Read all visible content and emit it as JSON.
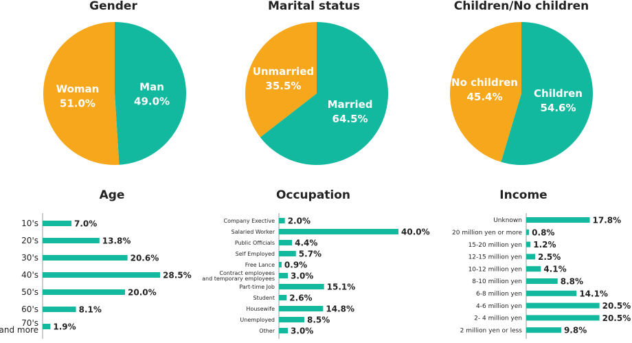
{
  "colors": {
    "teal": "#12b99e",
    "orange": "#f7a71b",
    "axis": "#9a9a9a",
    "text": "#222222",
    "pie_text": "#ffffff"
  },
  "chart_data": [
    {
      "type": "pie",
      "title": "Gender",
      "slices": [
        {
          "label": "Man",
          "value_label": "49.0%",
          "value": 49.0,
          "color": "#12b99e"
        },
        {
          "label": "Woman",
          "value_label": "51.0%",
          "value": 51.0,
          "color": "#f7a71b"
        }
      ]
    },
    {
      "type": "pie",
      "title": "Marital status",
      "slices": [
        {
          "label": "Married",
          "value_label": "64.5%",
          "value": 64.5,
          "color": "#12b99e"
        },
        {
          "label": "Unmarried",
          "value_label": "35.5%",
          "value": 35.5,
          "color": "#f7a71b"
        }
      ]
    },
    {
      "type": "pie",
      "title": "Children/No children",
      "slices": [
        {
          "label": "Children",
          "value_label": "54.6%",
          "value": 54.6,
          "color": "#12b99e"
        },
        {
          "label": "No children",
          "value_label": "45.4%",
          "value": 45.4,
          "color": "#f7a71b"
        }
      ]
    },
    {
      "type": "bar",
      "orientation": "horizontal",
      "title": "Age",
      "categories": [
        "10's",
        "20's",
        "30's",
        "40's",
        "50's",
        "60's",
        "70's\nand more"
      ],
      "values": [
        7.0,
        13.8,
        20.6,
        28.5,
        20.0,
        8.1,
        1.9
      ],
      "value_labels": [
        "7.0%",
        "13.8%",
        "20.6%",
        "28.5%",
        "20.0%",
        "8.1%",
        "1.9%"
      ]
    },
    {
      "type": "bar",
      "orientation": "horizontal",
      "title": "Occupation",
      "categories": [
        "Company Exective",
        "Salaried Worker",
        "Public Officials",
        "Self Employed",
        "Free Lance",
        "Contract employees\nand temporary employees",
        "Part-time Job",
        "Student",
        "Housewife",
        "Unemployed",
        "Other"
      ],
      "values": [
        2.0,
        40.0,
        4.4,
        5.7,
        0.9,
        3.0,
        15.1,
        2.6,
        14.8,
        8.5,
        3.0
      ],
      "value_labels": [
        "2.0%",
        "40.0%",
        "4.4%",
        "5.7%",
        "0.9%",
        "3.0%",
        "15.1%",
        "2.6%",
        "14.8%",
        "8.5%",
        "3.0%"
      ]
    },
    {
      "type": "bar",
      "orientation": "horizontal",
      "title": "Income",
      "categories": [
        "Unknown",
        "20 million yen or more",
        "15-20 million yen",
        "12-15 million yen",
        "10-12 million yen",
        "8-10 million yen",
        "6-8 million yen",
        "4-6 million yen",
        "2- 4 million yen",
        "2 million yen or less"
      ],
      "values": [
        17.8,
        0.8,
        1.2,
        2.5,
        4.1,
        8.8,
        14.1,
        20.5,
        20.5,
        9.8
      ],
      "value_labels": [
        "17.8%",
        "0.8%",
        "1.2%",
        "2.5%",
        "4.1%",
        "8.8%",
        "14.1%",
        "20.5%",
        "20.5%",
        "9.8%"
      ]
    }
  ]
}
